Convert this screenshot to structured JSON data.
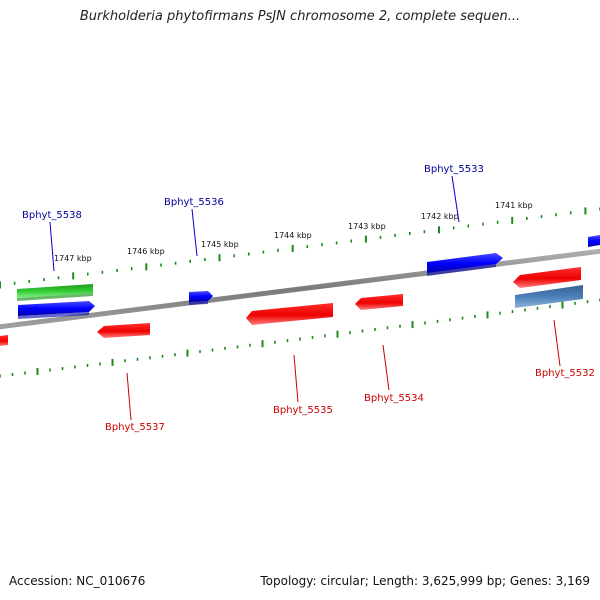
{
  "title": "Burkholderia phytofirmans PsJN chromosome 2, complete sequen...",
  "footer": {
    "accession": "Accession: NC_010676",
    "summary": "Topology: circular; Length: 3,625,999 bp; Genes: 3,169"
  },
  "colors": {
    "backbone": "#808080",
    "ticks": "#1a8a1a",
    "forward_gene": "#0000ff",
    "reverse_gene": "#ff0000",
    "highlight_gene": "#33cc33",
    "other_gene": "#4a7fb8",
    "forward_label": "#000099",
    "reverse_label": "#cc0000"
  },
  "scale": {
    "unit": "kbp",
    "labels": [
      "1747 kbp",
      "1746 kbp",
      "1745 kbp",
      "1744 kbp",
      "1743 kbp",
      "1742 kbp",
      "1741 kbp"
    ]
  },
  "genes": [
    {
      "label": "Bphyt_5538",
      "strand": "forward"
    },
    {
      "label": "Bphyt_5536",
      "strand": "forward"
    },
    {
      "label": "Bphyt_5533",
      "strand": "forward"
    },
    {
      "label": "Bphyt_5537",
      "strand": "reverse"
    },
    {
      "label": "Bphyt_5535",
      "strand": "reverse"
    },
    {
      "label": "Bphyt_5534",
      "strand": "reverse"
    },
    {
      "label": "Bphyt_5532",
      "strand": "reverse"
    }
  ]
}
